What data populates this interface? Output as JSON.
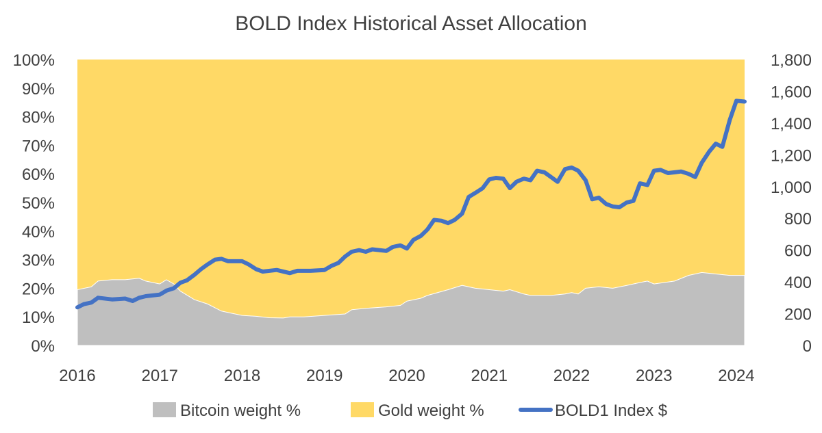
{
  "chart_data": {
    "type": "area",
    "title": "BOLD Index Historical Asset Allocation",
    "x_ticks": [
      "2016",
      "2017",
      "2018",
      "2019",
      "2020",
      "2021",
      "2022",
      "2023",
      "2024"
    ],
    "y_left_ticks": [
      "0%",
      "10%",
      "20%",
      "30%",
      "40%",
      "50%",
      "60%",
      "70%",
      "80%",
      "90%",
      "100%"
    ],
    "y_right_ticks": [
      "0",
      "200",
      "400",
      "600",
      "800",
      "1,000",
      "1,200",
      "1,400",
      "1,600",
      "1,800"
    ],
    "ylim_left": [
      0,
      100
    ],
    "ylim_right": [
      0,
      1800
    ],
    "xlim": [
      2016.0,
      2024.1
    ],
    "legend_position": "bottom",
    "colors": {
      "bitcoin": "#BFBFBF",
      "gold": "#FFD966",
      "index": "#4472C4"
    },
    "series": [
      {
        "name": "Bitcoin weight %",
        "kind": "stacked-area",
        "x": [
          2016.0,
          2016.17,
          2016.25,
          2016.42,
          2016.58,
          2016.75,
          2016.83,
          2017.0,
          2017.08,
          2017.17,
          2017.25,
          2017.42,
          2017.58,
          2017.75,
          2017.83,
          2018.0,
          2018.17,
          2018.33,
          2018.5,
          2018.58,
          2018.75,
          2019.0,
          2019.25,
          2019.33,
          2019.5,
          2019.75,
          2019.92,
          2020.0,
          2020.17,
          2020.25,
          2020.5,
          2020.67,
          2020.83,
          2021.0,
          2021.17,
          2021.25,
          2021.42,
          2021.5,
          2021.58,
          2021.75,
          2021.92,
          2022.0,
          2022.08,
          2022.17,
          2022.33,
          2022.5,
          2022.67,
          2022.83,
          2022.92,
          2023.0,
          2023.25,
          2023.42,
          2023.5,
          2023.58,
          2023.75,
          2023.92,
          2024.0,
          2024.1
        ],
        "values": [
          19.5,
          20.5,
          22.5,
          23,
          23,
          23.5,
          22.5,
          21.5,
          23,
          21.5,
          19,
          16,
          14.5,
          12,
          11.5,
          10.5,
          10.2,
          9.7,
          9.6,
          10,
          10,
          10.5,
          11,
          12.5,
          13,
          13.5,
          14,
          15.5,
          16.5,
          17.5,
          19.5,
          21,
          20,
          19.5,
          19,
          19.5,
          18,
          17.5,
          17.5,
          17.5,
          18,
          18.5,
          18,
          20,
          20.5,
          20,
          21,
          22,
          22.5,
          21.5,
          22.5,
          24.5,
          25,
          25.5,
          25,
          24.5,
          24.5,
          24.5
        ]
      },
      {
        "name": "Gold weight %",
        "kind": "stacked-area-top",
        "note_values_fill_to": 100
      },
      {
        "name": "BOLD1 Index $",
        "kind": "line",
        "axis": "right",
        "x": [
          2016.0,
          2016.08,
          2016.17,
          2016.25,
          2016.42,
          2016.58,
          2016.67,
          2016.75,
          2016.83,
          2017.0,
          2017.08,
          2017.17,
          2017.25,
          2017.33,
          2017.42,
          2017.5,
          2017.58,
          2017.67,
          2017.75,
          2017.83,
          2018.0,
          2018.08,
          2018.17,
          2018.25,
          2018.42,
          2018.58,
          2018.67,
          2018.75,
          2018.83,
          2019.0,
          2019.08,
          2019.17,
          2019.25,
          2019.33,
          2019.42,
          2019.5,
          2019.58,
          2019.75,
          2019.83,
          2019.92,
          2020.0,
          2020.08,
          2020.17,
          2020.25,
          2020.33,
          2020.42,
          2020.5,
          2020.58,
          2020.67,
          2020.75,
          2020.83,
          2020.92,
          2021.0,
          2021.08,
          2021.17,
          2021.25,
          2021.33,
          2021.42,
          2021.5,
          2021.58,
          2021.67,
          2021.75,
          2021.83,
          2021.92,
          2022.0,
          2022.08,
          2022.17,
          2022.25,
          2022.33,
          2022.42,
          2022.5,
          2022.58,
          2022.67,
          2022.75,
          2022.83,
          2022.92,
          2023.0,
          2023.08,
          2023.17,
          2023.25,
          2023.33,
          2023.42,
          2023.5,
          2023.58,
          2023.67,
          2023.75,
          2023.83,
          2023.92,
          2024.0,
          2024.1
        ],
        "values": [
          240,
          260,
          270,
          300,
          290,
          295,
          280,
          300,
          310,
          320,
          345,
          360,
          395,
          410,
          445,
          480,
          510,
          540,
          545,
          530,
          530,
          510,
          480,
          465,
          475,
          455,
          470,
          470,
          470,
          475,
          500,
          520,
          560,
          590,
          600,
          590,
          605,
          595,
          620,
          630,
          610,
          665,
          690,
          730,
          790,
          785,
          770,
          790,
          830,
          935,
          960,
          990,
          1045,
          1055,
          1050,
          990,
          1030,
          1050,
          1040,
          1100,
          1090,
          1060,
          1030,
          1110,
          1120,
          1100,
          1040,
          920,
          930,
          890,
          875,
          870,
          900,
          910,
          1020,
          1010,
          1100,
          1105,
          1085,
          1090,
          1095,
          1080,
          1060,
          1150,
          1220,
          1270,
          1250,
          1420,
          1540,
          1535
        ]
      }
    ]
  }
}
